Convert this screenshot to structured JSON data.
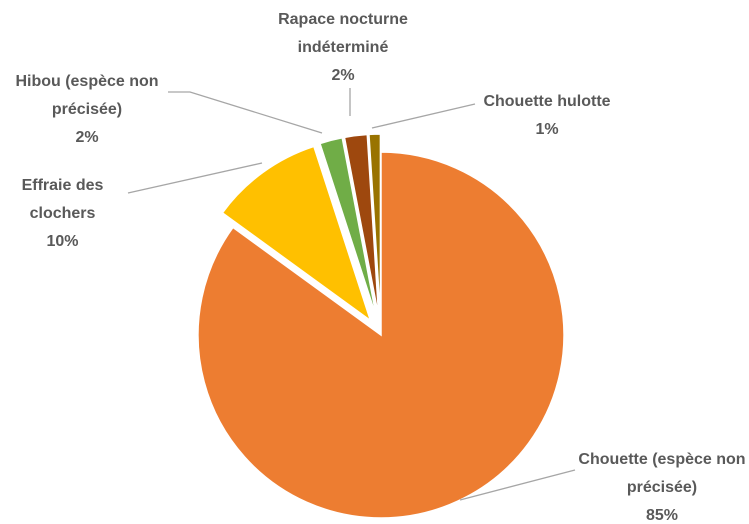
{
  "chart_data": {
    "type": "pie",
    "categories": [
      "Chouette (espèce non précisée)",
      "Effraie des clochers",
      "Hibou (espèce non précisée)",
      "Rapace nocturne indéterminé",
      "Chouette hulotte"
    ],
    "values": [
      85,
      10,
      2,
      2,
      1
    ],
    "value_labels": [
      "85%",
      "10%",
      "2%",
      "2%",
      "1%"
    ],
    "colors": [
      "#ED7D31",
      "#FFC000",
      "#70AD47",
      "#9E480E",
      "#997300"
    ]
  }
}
